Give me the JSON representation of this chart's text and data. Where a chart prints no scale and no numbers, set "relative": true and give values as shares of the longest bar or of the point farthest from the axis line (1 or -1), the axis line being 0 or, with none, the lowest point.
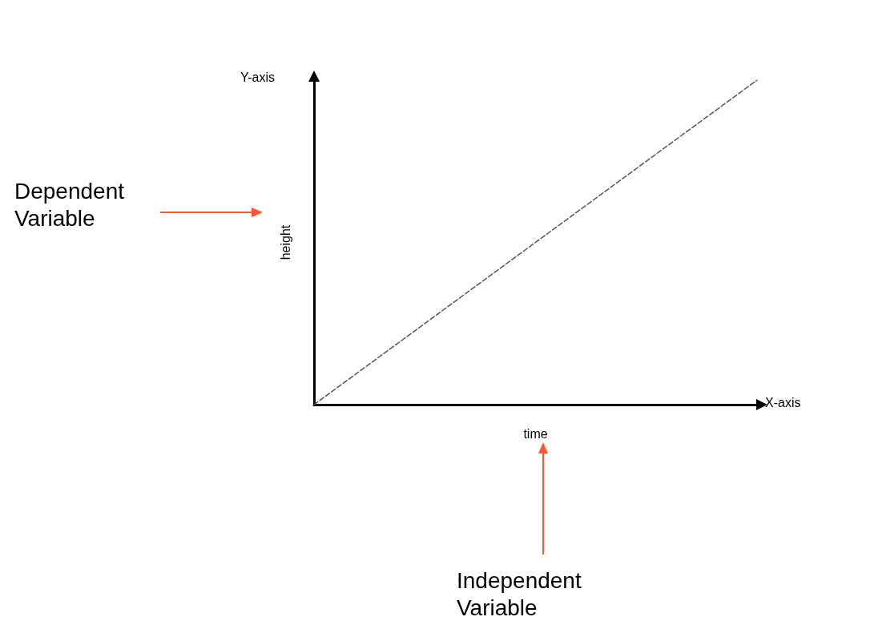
{
  "chart_data": {
    "type": "line",
    "xlabel": "time",
    "ylabel": "height",
    "categories": [
      null,
      null
    ],
    "relative": true,
    "series": [
      {
        "color": "#555555",
        "values": [
          0,
          1
        ]
      }
    ],
    "line_style": "dashed",
    "marker": "none",
    "grid": false,
    "annotations": [
      "Y-axis",
      "X-axis",
      "Dependent Variable",
      "Independent Variable"
    ]
  }
}
